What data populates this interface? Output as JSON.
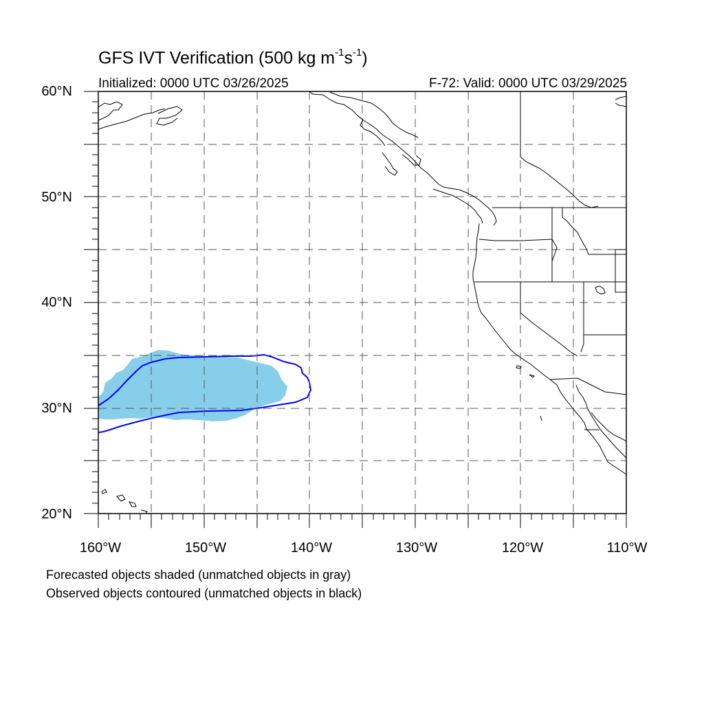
{
  "title": {
    "prefix": "GFS IVT Verification (500 kg m",
    "exp1": "-1",
    "mid": "s",
    "exp2": "-1",
    "suffix": ")"
  },
  "initialized": "Initialized: 0000 UTC 03/26/2025",
  "valid": "F-72: Valid: 0000 UTC 03/29/2025",
  "lat_labels": [
    "60°N",
    "50°N",
    "40°N",
    "30°N",
    "20°N"
  ],
  "lon_labels": [
    "160°W",
    "150°W",
    "140°W",
    "130°W",
    "120°W",
    "110°W"
  ],
  "legend": {
    "line1": "Forecasted objects shaded (unmatched objects in gray)",
    "line2": "Observed objects contoured (unmatched objects in black)"
  },
  "colors": {
    "forecast_fill": "#87ceeb",
    "observed_contour": "#0000ff",
    "coastline": "#000000",
    "gridline": "#555555"
  }
}
